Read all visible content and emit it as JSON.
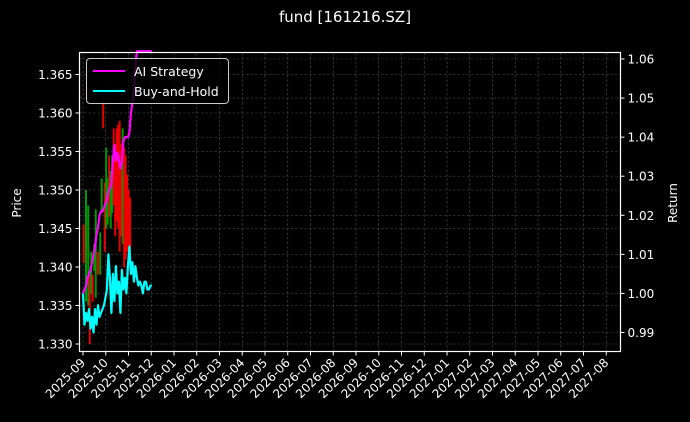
{
  "title": "fund [161216.SZ]",
  "chart_data": {
    "type": "line",
    "title": "fund [161216.SZ]",
    "xlabel": "",
    "ylabel": "Price",
    "ylabel_right": "Return",
    "ylim": [
      1.3295,
      1.368
    ],
    "ylim_right": [
      0.9855,
      1.0615
    ],
    "yticks": [
      "1.330",
      "1.335",
      "1.340",
      "1.345",
      "1.350",
      "1.355",
      "1.360",
      "1.365"
    ],
    "yticks_right": [
      "0.99",
      "1.00",
      "1.01",
      "1.02",
      "1.03",
      "1.04",
      "1.05",
      "1.06"
    ],
    "xticks": [
      "2025-09",
      "2025-10",
      "2025-11",
      "2025-12",
      "2026-01",
      "2026-02",
      "2026-03",
      "2026-04",
      "2026-05",
      "2026-06",
      "2026-07",
      "2026-08",
      "2026-09",
      "2026-10",
      "2026-11",
      "2026-12",
      "2027-01",
      "2027-02",
      "2027-03",
      "2027-04",
      "2027-05",
      "2027-06",
      "2027-07",
      "2027-08"
    ],
    "grid": true,
    "legend_position": "upper left",
    "series": [
      {
        "name": "AI Strategy",
        "color": "#ff00ff",
        "axis": "right",
        "x_day": [
          0,
          2,
          4,
          6,
          8,
          10,
          12,
          14,
          16,
          18,
          20,
          22,
          24,
          26,
          28,
          30,
          32,
          34,
          36,
          38,
          40,
          42,
          44,
          46,
          48,
          50,
          52,
          54,
          56,
          58,
          60,
          62,
          64,
          66,
          68,
          70,
          72,
          74,
          76,
          78,
          80,
          82,
          84,
          86,
          88,
          90,
          92
        ],
        "values": [
          1.0,
          1.001,
          1.002,
          1.004,
          1.005,
          1.006,
          1.008,
          1.01,
          1.012,
          1.015,
          1.017,
          1.02,
          1.021,
          1.021,
          1.022,
          1.023,
          1.024,
          1.026,
          1.027,
          1.028,
          1.034,
          1.038,
          1.034,
          1.036,
          1.034,
          1.032,
          1.034,
          1.039,
          1.04,
          1.04,
          1.04,
          1.041,
          1.046,
          1.049,
          1.052,
          1.058,
          1.062,
          1.062,
          1.062,
          1.062,
          1.062,
          1.062,
          1.062,
          1.062,
          1.062,
          1.062,
          1.062
        ]
      },
      {
        "name": "Buy-and-Hold",
        "color": "#00ffff",
        "axis": "right",
        "x_day": [
          0,
          2,
          4,
          6,
          8,
          10,
          12,
          14,
          16,
          18,
          20,
          22,
          24,
          26,
          28,
          30,
          32,
          34,
          36,
          38,
          40,
          42,
          44,
          46,
          48,
          50,
          52,
          54,
          56,
          58,
          60,
          62,
          64,
          66,
          68,
          70,
          72,
          74,
          76,
          78,
          80,
          82,
          84,
          86,
          88,
          90,
          92
        ],
        "values": [
          1.0,
          0.992,
          0.995,
          0.993,
          0.996,
          0.991,
          0.994,
          0.99,
          0.996,
          0.992,
          0.997,
          0.994,
          0.995,
          0.996,
          0.997,
          0.999,
          1.001,
          1.01,
          1.004,
          0.995,
          1.005,
          0.998,
          1.007,
          1.0,
          1.003,
          0.995,
          1.006,
          1.001,
          1.004,
          1.0,
          1.007,
          1.012,
          1.005,
          1.008,
          1.003,
          1.007,
          1.004,
          1.002,
          1.003,
          1.002,
          1.0,
          1.003,
          1.003,
          1.001,
          1.001,
          1.002,
          1.002
        ]
      }
    ],
    "candlesticks": {
      "up_color": "#00aa00",
      "down_color": "#ff0000",
      "note": "Daily OHLC price bars on left axis, Sep 2025 to early Dec 2025",
      "bars": [
        {
          "day": 1,
          "low": 1.3405,
          "high": 1.3455,
          "dir": "down"
        },
        {
          "day": 4,
          "low": 1.3355,
          "high": 1.35,
          "dir": "up"
        },
        {
          "day": 7,
          "low": 1.335,
          "high": 1.348,
          "dir": "up"
        },
        {
          "day": 9,
          "low": 1.33,
          "high": 1.339,
          "dir": "down"
        },
        {
          "day": 11,
          "low": 1.3365,
          "high": 1.342,
          "dir": "up"
        },
        {
          "day": 13,
          "low": 1.3355,
          "high": 1.339,
          "dir": "down"
        },
        {
          "day": 15,
          "low": 1.3395,
          "high": 1.343,
          "dir": "up"
        },
        {
          "day": 17,
          "low": 1.336,
          "high": 1.3475,
          "dir": "up"
        },
        {
          "day": 20,
          "low": 1.339,
          "high": 1.342,
          "dir": "down"
        },
        {
          "day": 23,
          "low": 1.339,
          "high": 1.3445,
          "dir": "up"
        },
        {
          "day": 25,
          "low": 1.347,
          "high": 1.3515,
          "dir": "up"
        },
        {
          "day": 27,
          "low": 1.358,
          "high": 1.3615,
          "dir": "down"
        },
        {
          "day": 29,
          "low": 1.342,
          "high": 1.351,
          "dir": "down"
        },
        {
          "day": 31,
          "low": 1.345,
          "high": 1.3555,
          "dir": "up"
        },
        {
          "day": 33,
          "low": 1.3455,
          "high": 1.3515,
          "dir": "up"
        },
        {
          "day": 35,
          "low": 1.3465,
          "high": 1.3545,
          "dir": "down"
        },
        {
          "day": 37,
          "low": 1.345,
          "high": 1.3525,
          "dir": "up"
        },
        {
          "day": 39,
          "low": 1.347,
          "high": 1.3545,
          "dir": "up"
        },
        {
          "day": 41,
          "low": 1.348,
          "high": 1.358,
          "dir": "down"
        },
        {
          "day": 43,
          "low": 1.344,
          "high": 1.356,
          "dir": "down"
        },
        {
          "day": 45,
          "low": 1.346,
          "high": 1.358,
          "dir": "down"
        },
        {
          "day": 47,
          "low": 1.345,
          "high": 1.3585,
          "dir": "down"
        },
        {
          "day": 49,
          "low": 1.342,
          "high": 1.359,
          "dir": "down"
        },
        {
          "day": 51,
          "low": 1.344,
          "high": 1.356,
          "dir": "down"
        },
        {
          "day": 53,
          "low": 1.343,
          "high": 1.358,
          "dir": "up"
        },
        {
          "day": 55,
          "low": 1.34,
          "high": 1.3555,
          "dir": "down"
        },
        {
          "day": 57,
          "low": 1.341,
          "high": 1.3545,
          "dir": "down"
        },
        {
          "day": 59,
          "low": 1.342,
          "high": 1.352,
          "dir": "down"
        },
        {
          "day": 61,
          "low": 1.341,
          "high": 1.35,
          "dir": "down"
        },
        {
          "day": 63,
          "low": 1.342,
          "high": 1.349,
          "dir": "down"
        }
      ]
    }
  }
}
